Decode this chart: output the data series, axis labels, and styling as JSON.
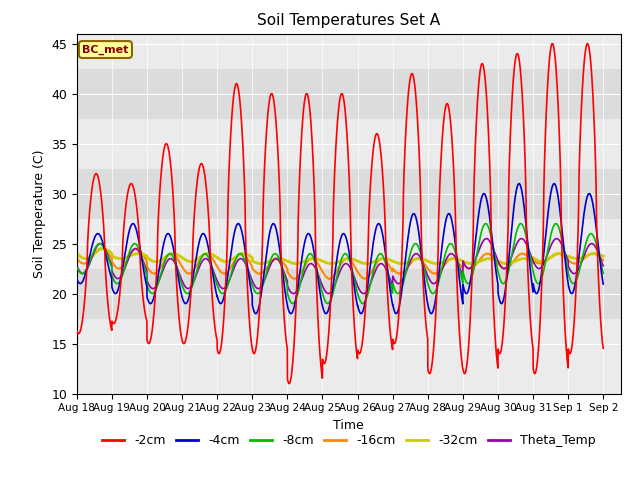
{
  "title": "Soil Temperatures Set A",
  "xlabel": "Time",
  "ylabel": "Soil Temperature (C)",
  "ylim": [
    10,
    46
  ],
  "xlim": [
    0,
    15.5
  ],
  "annotation_text": "BC_met",
  "series": {
    "-2cm": {
      "color": "#FF0000",
      "linewidth": 1.2
    },
    "-4cm": {
      "color": "#0000CC",
      "linewidth": 1.2
    },
    "-8cm": {
      "color": "#00BB00",
      "linewidth": 1.2
    },
    "-16cm": {
      "color": "#FF8800",
      "linewidth": 1.5
    },
    "-32cm": {
      "color": "#CCCC00",
      "linewidth": 2.0
    },
    "Theta_Temp": {
      "color": "#9900AA",
      "linewidth": 1.2
    }
  },
  "legend_order": [
    "-2cm",
    "-4cm",
    "-8cm",
    "-16cm",
    "-32cm",
    "Theta_Temp"
  ],
  "xtick_labels": [
    "Aug 18",
    "Aug 19",
    "Aug 20",
    "Aug 21",
    "Aug 22",
    "Aug 23",
    "Aug 24",
    "Aug 25",
    "Aug 26",
    "Aug 27",
    "Aug 28",
    "Aug 29",
    "Aug 30",
    "Aug 31",
    "Sep 1",
    "Sep 2"
  ],
  "ytick_labels": [
    10,
    15,
    20,
    25,
    30,
    35,
    40,
    45
  ],
  "band_ranges": [
    [
      37.5,
      42.5
    ],
    [
      27.5,
      32.5
    ],
    [
      17.5,
      22.5
    ]
  ],
  "band_color": "#DCDCDC",
  "background_color": "#EBEBEB",
  "peaks_2cm": [
    32,
    31,
    35,
    33,
    41,
    40,
    40,
    40,
    36,
    42,
    39,
    43,
    44,
    45,
    45
  ],
  "troughs_2cm": [
    16,
    17,
    15,
    15,
    14,
    14,
    11,
    13,
    14,
    15,
    12,
    12,
    14,
    12,
    14
  ],
  "peaks_4cm": [
    26,
    27,
    26,
    26,
    27,
    27,
    26,
    26,
    27,
    28,
    28,
    30,
    31,
    31,
    30
  ],
  "troughs_4cm": [
    21,
    20,
    19,
    19,
    19,
    18,
    18,
    18,
    18,
    18,
    18,
    20,
    19,
    20,
    20
  ],
  "peaks_8cm": [
    25,
    25,
    24,
    24,
    24,
    24,
    24,
    24,
    24,
    25,
    25,
    27,
    27,
    27,
    26
  ],
  "troughs_8cm": [
    22,
    21,
    20,
    20,
    20,
    20,
    19,
    19,
    19,
    20,
    20,
    21,
    21,
    21,
    21
  ],
  "peaks_16cm": [
    24.5,
    24.5,
    24,
    24,
    24,
    23.5,
    23.5,
    23.5,
    23.5,
    23.5,
    23.5,
    24,
    24,
    24,
    24
  ],
  "troughs_16cm": [
    23,
    22.5,
    22,
    22,
    22,
    22,
    21.5,
    21.5,
    21.5,
    22,
    22,
    22.5,
    22.5,
    23,
    23
  ],
  "peaks_32cm": [
    24.5,
    24,
    24,
    24,
    24,
    23.5,
    23.5,
    23.5,
    23.5,
    23.5,
    23.5,
    23.5,
    23.5,
    24,
    24
  ],
  "troughs_32cm": [
    23.5,
    23.5,
    23.2,
    23.2,
    23.2,
    23,
    23,
    23,
    23,
    23,
    23,
    23,
    23,
    23.2,
    23.5
  ]
}
